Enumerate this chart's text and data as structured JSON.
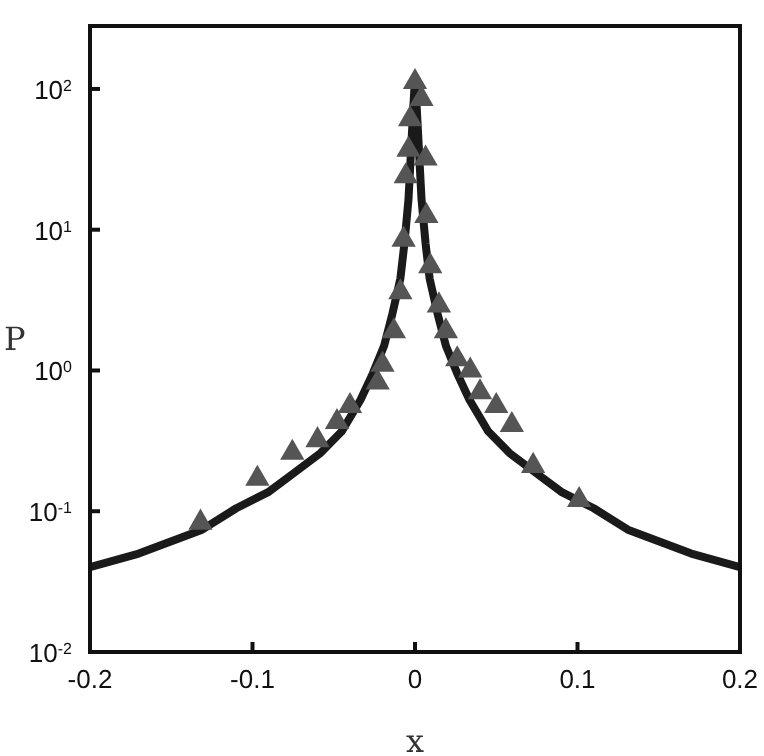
{
  "chart_data": {
    "type": "scatter",
    "xlabel": "x",
    "ylabel": "P",
    "log": "y",
    "grid": false,
    "legend": false,
    "xlim": [
      -0.2,
      0.2
    ],
    "xticks": [
      -0.2,
      -0.1,
      0,
      0.1,
      0.2
    ],
    "ylim": [
      0.01,
      280
    ],
    "yticks": [
      {
        "value": 0.01,
        "label": "10$^{-2}$"
      },
      {
        "value": 0.1,
        "label": "10$^{-1}$"
      },
      {
        "value": 1,
        "label": "10$^{0}$"
      },
      {
        "value": 10,
        "label": "10$^{1}$"
      },
      {
        "value": 100,
        "label": "10$^{2}$"
      }
    ],
    "series": [
      {
        "type": "line",
        "color": "#1a1a1a",
        "marker": "none",
        "line_style": "solid",
        "x": [
          -0.2,
          -0.17,
          -0.131,
          -0.11,
          -0.0906,
          -0.075,
          -0.058,
          -0.045,
          -0.0335,
          -0.026,
          -0.019,
          -0.014,
          -0.009,
          -0.0065,
          -0.004,
          -0.001,
          0,
          0.001,
          0.004,
          0.0065,
          0.009,
          0.014,
          0.019,
          0.026,
          0.0335,
          0.045,
          0.058,
          0.075,
          0.0906,
          0.11,
          0.131,
          0.17,
          0.2
        ],
        "values": [
          0.04,
          0.05,
          0.074,
          0.105,
          0.136,
          0.185,
          0.26,
          0.37,
          0.62,
          0.95,
          1.5,
          2.5,
          4.5,
          8,
          16.5,
          76,
          117,
          76,
          16.5,
          8,
          4.5,
          2.5,
          1.5,
          0.95,
          0.62,
          0.37,
          0.26,
          0.185,
          0.136,
          0.105,
          0.074,
          0.05,
          0.04
        ]
      },
      {
        "color": "#555555",
        "marker": "triangle",
        "x": [
          -0.132,
          -0.097,
          -0.0755,
          -0.06,
          -0.048,
          -0.04,
          -0.023,
          -0.02,
          -0.013,
          -0.009,
          -0.007,
          -0.0057,
          -0.004,
          -0.003,
          0,
          0.004,
          0.0065,
          0.007,
          0.0094,
          0.0147,
          0.019,
          0.026,
          0.034,
          0.04,
          0.05,
          0.0596,
          0.0727,
          0.101
        ],
        "values": [
          0.083,
          0.17,
          0.26,
          0.32,
          0.43,
          0.56,
          0.82,
          1.1,
          1.9,
          3.6,
          8.5,
          24,
          37,
          61,
          112,
          85,
          32,
          12.5,
          5.5,
          2.9,
          1.9,
          1.2,
          1.0,
          0.7,
          0.56,
          0.41,
          0.21,
          0.12
        ]
      }
    ]
  }
}
